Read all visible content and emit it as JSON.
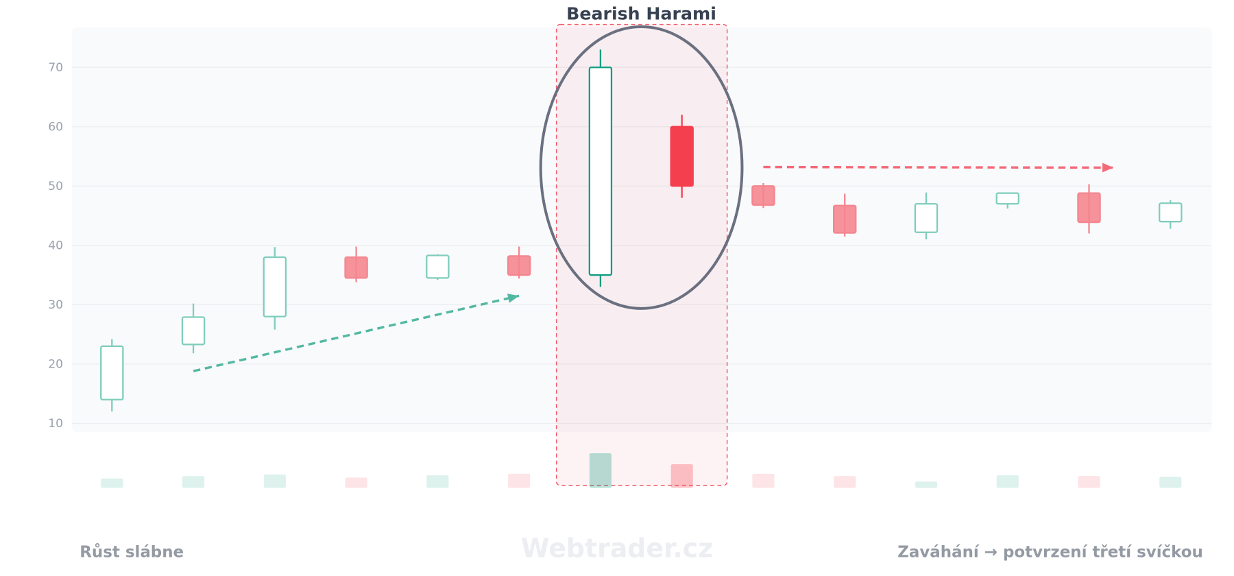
{
  "chart_data": {
    "type": "candlestick",
    "title": "Bearish Harami",
    "ylim": [
      8,
      77
    ],
    "yticks": [
      10,
      20,
      30,
      40,
      50,
      60,
      70
    ],
    "grid": true,
    "candles": [
      {
        "o": 14,
        "h": 24.2,
        "l": 12,
        "c": 23,
        "v": 12
      },
      {
        "o": 23.3,
        "h": 30.2,
        "l": 21.8,
        "c": 27.9,
        "v": 15
      },
      {
        "o": 28,
        "h": 39.7,
        "l": 25.8,
        "c": 38,
        "v": 17
      },
      {
        "o": 38,
        "h": 39.8,
        "l": 33.8,
        "c": 34.5,
        "v": 13
      },
      {
        "o": 34.5,
        "h": 38.5,
        "l": 34.2,
        "c": 38.3,
        "v": 16
      },
      {
        "o": 38.2,
        "h": 39.8,
        "l": 34.4,
        "c": 35,
        "v": 18
      },
      {
        "o": 35,
        "h": 73,
        "l": 33,
        "c": 70,
        "v": 44,
        "highlight": true
      },
      {
        "o": 60,
        "h": 62,
        "l": 48,
        "c": 50,
        "v": 30,
        "highlight": true
      },
      {
        "o": 50,
        "h": 50.5,
        "l": 46.3,
        "c": 46.8,
        "v": 18
      },
      {
        "o": 46.7,
        "h": 48.7,
        "l": 41.5,
        "c": 42.1,
        "v": 15
      },
      {
        "o": 42.2,
        "h": 48.9,
        "l": 41,
        "c": 47,
        "v": 8
      },
      {
        "o": 47,
        "h": 48.9,
        "l": 46.2,
        "c": 48.8,
        "v": 16
      },
      {
        "o": 48.8,
        "h": 50.3,
        "l": 42,
        "c": 43.9,
        "v": 15
      },
      {
        "o": 44,
        "h": 47.6,
        "l": 42.8,
        "c": 47.1,
        "v": 14
      }
    ],
    "annotations": {
      "pattern_candles": [
        7,
        8
      ],
      "trend_up_arrow": {
        "from": [
          2,
          18.8
        ],
        "to": [
          6,
          31.5
        ]
      },
      "flat_arrow": {
        "from": [
          9,
          53.2
        ],
        "to": [
          13.3,
          53.1
        ]
      },
      "left_caption": "Růst slábne",
      "right_caption": "Zaváhání → potvrzení třetí svíčkou"
    },
    "watermark": "Webtrader.cz",
    "colors": {
      "bull": "#0f9d82",
      "bull_light": "#7fcdbb",
      "bear": "#f43f4e",
      "bear_light": "#f4868f",
      "highlight_box": "#f05a6a",
      "ellipse": "#6b7080",
      "plot_bg": "#f9fafc",
      "grid": "#eceef1"
    }
  }
}
